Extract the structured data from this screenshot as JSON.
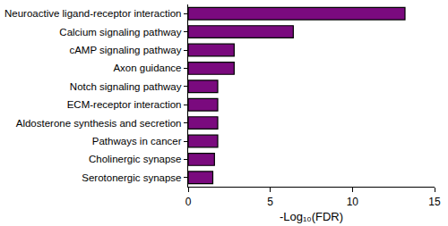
{
  "chart_data": {
    "type": "bar",
    "orientation": "horizontal",
    "categories": [
      "Neuroactive ligand-receptor interaction",
      "Calcium signaling pathway",
      "cAMP signaling pathway",
      "Axon guidance",
      "Notch signaling pathway",
      "ECM-receptor interaction",
      "Aldosterone synthesis and secretion",
      "Pathways in cancer",
      "Cholinergic synapse",
      "Serotonergic synapse"
    ],
    "values": [
      13.2,
      6.4,
      2.8,
      2.8,
      1.8,
      1.8,
      1.8,
      1.8,
      1.6,
      1.5
    ],
    "color": "#7a0a7e",
    "xlabel": "-Log₁₀(FDR)",
    "xlim": [
      0,
      15
    ],
    "xticks": [
      0,
      5,
      10,
      15
    ],
    "grid": false
  }
}
